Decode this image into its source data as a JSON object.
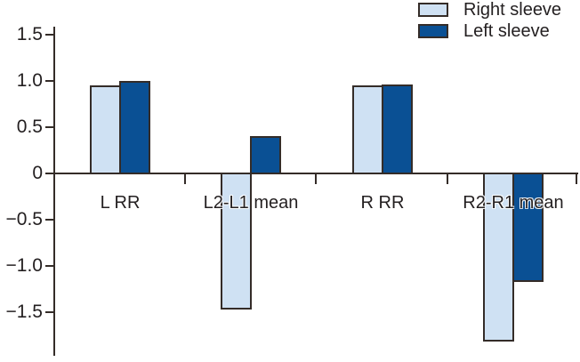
{
  "figure": {
    "background": "#ffffff",
    "text_color": "#231f20",
    "axis_color": "#342c28"
  },
  "chart_data": {
    "type": "bar",
    "title": "",
    "xlabel": "",
    "ylabel": "",
    "categories": [
      "L RR",
      "L2-L1 mean",
      "R RR",
      "R2-R1 mean"
    ],
    "series": [
      {
        "name": "Right sleeve",
        "color": "#cfe1f3",
        "values": [
          0.95,
          -1.45,
          0.95,
          -1.8
        ]
      },
      {
        "name": "Left sleeve",
        "color": "#0a5094",
        "values": [
          1.0,
          0.4,
          0.96,
          -1.15
        ]
      }
    ],
    "ylim": [
      -2.0,
      1.6
    ],
    "yticks": [
      1.5,
      1.0,
      0.5,
      0,
      -0.5,
      -1.0,
      -1.5
    ],
    "ytick_labels": [
      "1.5",
      "1.0",
      "0.5",
      "0",
      "−0.5",
      "−1.0",
      "−1.5"
    ],
    "grid": false,
    "legend_position": "top-right",
    "bar_outline": "#342c28"
  }
}
